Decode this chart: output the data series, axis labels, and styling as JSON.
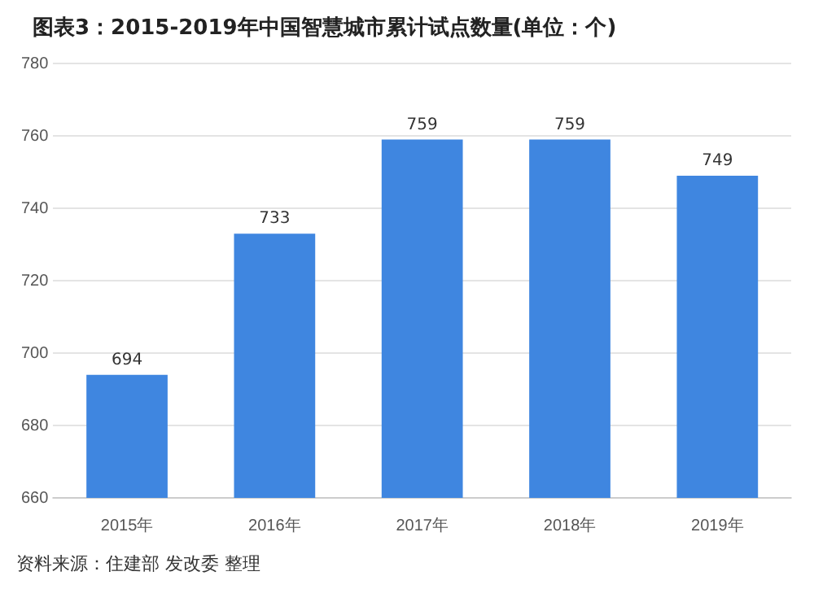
{
  "chart_data": {
    "type": "bar",
    "title": "图表3：2015-2019年中国智慧城市累计试点数量(单位：个)",
    "categories": [
      "2015年",
      "2016年",
      "2017年",
      "2018年",
      "2019年"
    ],
    "values": [
      694,
      733,
      759,
      759,
      749
    ],
    "color": "#3f86e0",
    "ylim": [
      660,
      780
    ],
    "yticks": [
      660,
      680,
      700,
      720,
      740,
      760,
      780
    ],
    "grid": "y",
    "data_labels": true,
    "legend": false,
    "annotations": [
      "资料来源：住建部 发改委 整理"
    ]
  }
}
